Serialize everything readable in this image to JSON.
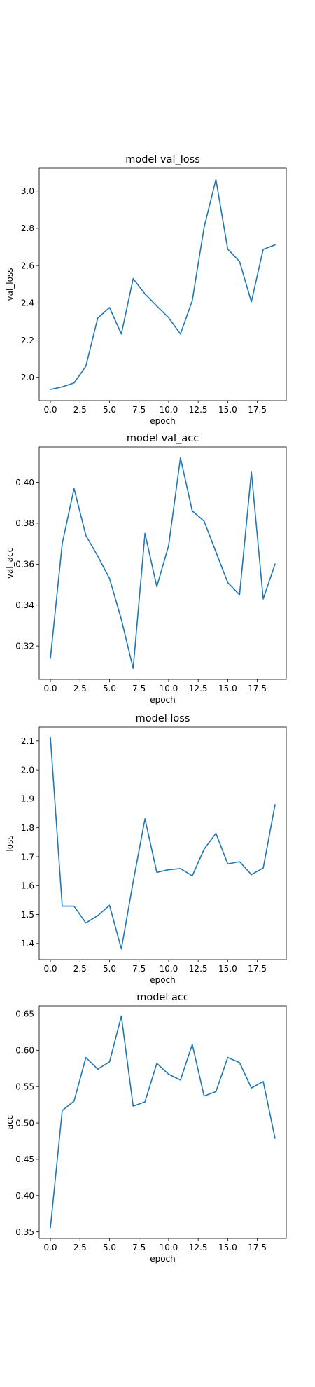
{
  "chart_data": [
    {
      "type": "line",
      "title": "model val_loss",
      "xlabel": "epoch",
      "ylabel": "val_loss",
      "xlim": [
        -0.95,
        19.95
      ],
      "ylim": [
        1.875,
        3.123
      ],
      "xticks": [
        0.0,
        2.5,
        5.0,
        7.5,
        10.0,
        12.5,
        15.0,
        17.5
      ],
      "xtick_labels": [
        "0.0",
        "2.5",
        "5.0",
        "7.5",
        "10.0",
        "12.5",
        "15.0",
        "17.5"
      ],
      "yticks": [
        2.0,
        2.2,
        2.4,
        2.6,
        2.8,
        3.0
      ],
      "ytick_labels": [
        "2.0",
        "2.2",
        "2.4",
        "2.6",
        "2.8",
        "3.0"
      ],
      "grid": false,
      "color": "#1f77b4",
      "x": [
        0,
        1,
        2,
        3,
        4,
        5,
        6,
        7,
        8,
        9,
        10,
        11,
        12,
        13,
        14,
        15,
        16,
        17,
        18,
        19
      ],
      "y": [
        1.935,
        1.949,
        1.97,
        2.06,
        2.318,
        2.375,
        2.233,
        2.53,
        2.448,
        2.383,
        2.321,
        2.233,
        2.412,
        2.805,
        3.062,
        2.688,
        2.622,
        2.406,
        2.687,
        2.711
      ]
    },
    {
      "type": "line",
      "title": "model val_acc",
      "xlabel": "epoch",
      "ylabel": "val_acc",
      "xlim": [
        -0.95,
        19.95
      ],
      "ylim": [
        0.3036,
        0.4173
      ],
      "xticks": [
        0.0,
        2.5,
        5.0,
        7.5,
        10.0,
        12.5,
        15.0,
        17.5
      ],
      "xtick_labels": [
        "0.0",
        "2.5",
        "5.0",
        "7.5",
        "10.0",
        "12.5",
        "15.0",
        "17.5"
      ],
      "yticks": [
        0.32,
        0.34,
        0.36,
        0.38,
        0.4
      ],
      "ytick_labels": [
        "0.32",
        "0.34",
        "0.36",
        "0.38",
        "0.40"
      ],
      "grid": false,
      "color": "#1f77b4",
      "x": [
        0,
        1,
        2,
        3,
        4,
        5,
        6,
        7,
        8,
        9,
        10,
        11,
        12,
        13,
        14,
        15,
        16,
        17,
        18,
        19
      ],
      "y": [
        0.314,
        0.37,
        0.397,
        0.374,
        0.364,
        0.353,
        0.333,
        0.309,
        0.375,
        0.349,
        0.369,
        0.412,
        0.386,
        0.381,
        0.366,
        0.351,
        0.345,
        0.405,
        0.343,
        0.36
      ]
    },
    {
      "type": "line",
      "title": "model loss",
      "xlabel": "epoch",
      "ylabel": "loss",
      "xlim": [
        -0.95,
        19.95
      ],
      "ylim": [
        1.344,
        2.148
      ],
      "xticks": [
        0.0,
        2.5,
        5.0,
        7.5,
        10.0,
        12.5,
        15.0,
        17.5
      ],
      "xtick_labels": [
        "0.0",
        "2.5",
        "5.0",
        "7.5",
        "10.0",
        "12.5",
        "15.0",
        "17.5"
      ],
      "yticks": [
        1.4,
        1.5,
        1.6,
        1.7,
        1.8,
        1.9,
        2.0,
        2.1
      ],
      "ytick_labels": [
        "1.4",
        "1.5",
        "1.6",
        "1.7",
        "1.8",
        "1.9",
        "2.0",
        "2.1"
      ],
      "grid": false,
      "color": "#1f77b4",
      "x": [
        0,
        1,
        2,
        3,
        4,
        5,
        6,
        7,
        8,
        9,
        10,
        11,
        12,
        13,
        14,
        15,
        16,
        17,
        18,
        19
      ],
      "y": [
        2.112,
        1.529,
        1.529,
        1.471,
        1.496,
        1.532,
        1.381,
        1.613,
        1.831,
        1.646,
        1.655,
        1.659,
        1.634,
        1.726,
        1.781,
        1.675,
        1.683,
        1.638,
        1.661,
        1.879
      ]
    },
    {
      "type": "line",
      "title": "model acc",
      "xlabel": "epoch",
      "ylabel": "acc",
      "xlim": [
        -0.95,
        19.95
      ],
      "ylim": [
        0.341,
        0.661
      ],
      "xticks": [
        0.0,
        2.5,
        5.0,
        7.5,
        10.0,
        12.5,
        15.0,
        17.5
      ],
      "xtick_labels": [
        "0.0",
        "2.5",
        "5.0",
        "7.5",
        "10.0",
        "12.5",
        "15.0",
        "17.5"
      ],
      "yticks": [
        0.35,
        0.4,
        0.45,
        0.5,
        0.55,
        0.6,
        0.65
      ],
      "ytick_labels": [
        "0.35",
        "0.40",
        "0.45",
        "0.50",
        "0.55",
        "0.60",
        "0.65"
      ],
      "grid": false,
      "color": "#1f77b4",
      "x": [
        0,
        1,
        2,
        3,
        4,
        5,
        6,
        7,
        8,
        9,
        10,
        11,
        12,
        13,
        14,
        15,
        16,
        17,
        18,
        19
      ],
      "y": [
        0.356,
        0.517,
        0.53,
        0.59,
        0.574,
        0.584,
        0.647,
        0.523,
        0.529,
        0.582,
        0.567,
        0.559,
        0.608,
        0.537,
        0.543,
        0.59,
        0.583,
        0.548,
        0.557,
        0.479
      ]
    }
  ]
}
